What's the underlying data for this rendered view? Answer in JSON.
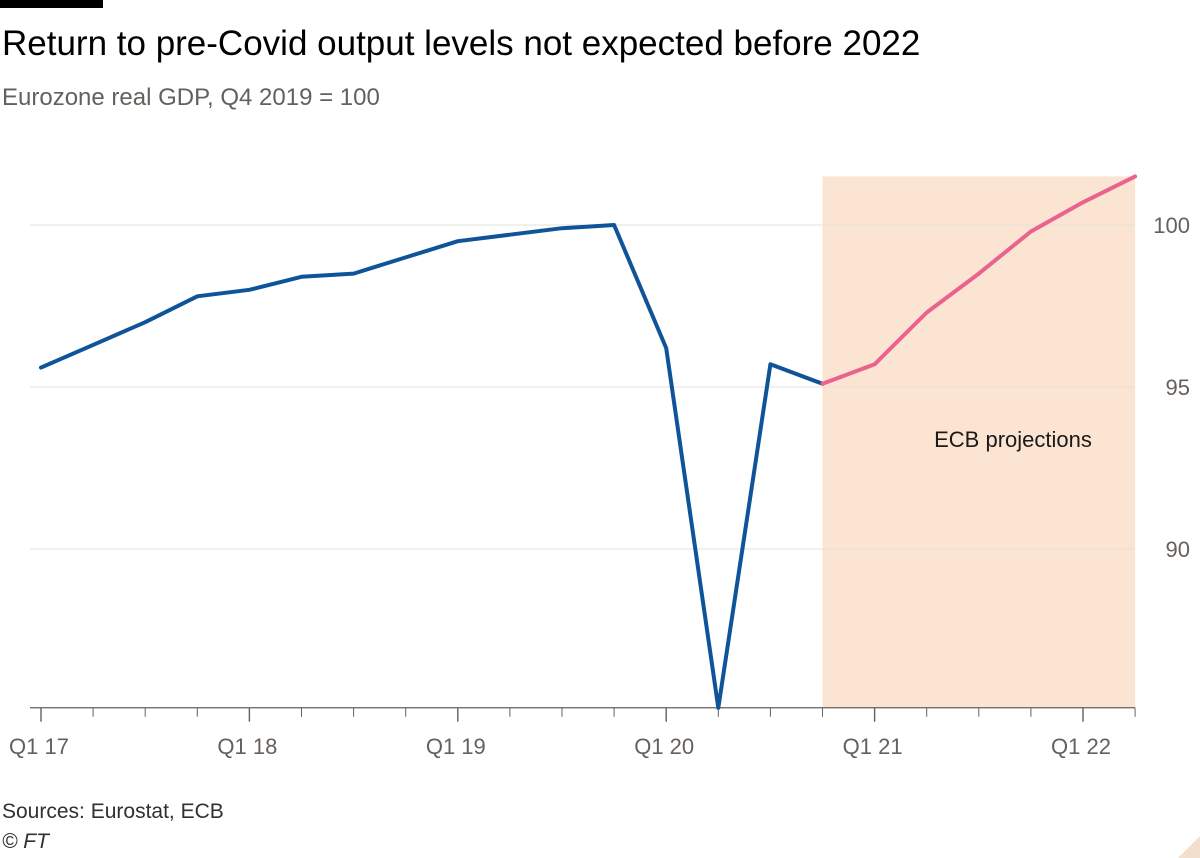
{
  "header": {
    "title": "Return to pre-Covid output levels not expected before 2022",
    "subtitle": "Eurozone real GDP, Q4 2019 = 100"
  },
  "footer": {
    "source": "Sources: Eurostat, ECB",
    "credit": "© FT"
  },
  "colors": {
    "actual": "#0f5499",
    "projection": "#e9638e",
    "projection_band": "#fce4d3",
    "grid": "#e6e0da",
    "axis": "#66605c"
  },
  "chart_data": {
    "type": "line",
    "title": "Return to pre-Covid output levels not expected before 2022",
    "subtitle": "Eurozone real GDP, Q4 2019 = 100",
    "xlabel": "",
    "ylabel": "",
    "ylim": [
      85.1,
      101.5
    ],
    "yticks": [
      90,
      95,
      100
    ],
    "grid": true,
    "y_axis_side": "right",
    "categories": [
      "Q1 17",
      "Q2 17",
      "Q3 17",
      "Q4 17",
      "Q1 18",
      "Q2 18",
      "Q3 18",
      "Q4 18",
      "Q1 19",
      "Q2 19",
      "Q3 19",
      "Q4 19",
      "Q1 20",
      "Q2 20",
      "Q3 20",
      "Q4 20",
      "Q1 21",
      "Q2 21",
      "Q3 21",
      "Q4 21",
      "Q1 22",
      "Q2 22"
    ],
    "xtick_labels": [
      "Q1 17",
      "Q1 18",
      "Q1 19",
      "Q1 20",
      "Q1 21",
      "Q1 22"
    ],
    "series": [
      {
        "values": [
          95.6,
          96.3,
          97.0,
          97.8,
          98.0,
          98.4,
          98.5,
          99.0,
          99.5,
          99.7,
          99.9,
          100.0,
          96.2,
          85.1,
          95.7,
          95.1,
          null,
          null,
          null,
          null,
          null,
          null
        ]
      },
      {
        "values": [
          null,
          null,
          null,
          null,
          null,
          null,
          null,
          null,
          null,
          null,
          null,
          null,
          null,
          null,
          null,
          95.1,
          95.7,
          97.3,
          98.5,
          99.8,
          100.7,
          101.5
        ]
      }
    ],
    "shaded_region": {
      "from": "Q4 20",
      "to": "Q2 22",
      "label": "ECB projections"
    },
    "annotations": [
      "ECB projections"
    ]
  }
}
